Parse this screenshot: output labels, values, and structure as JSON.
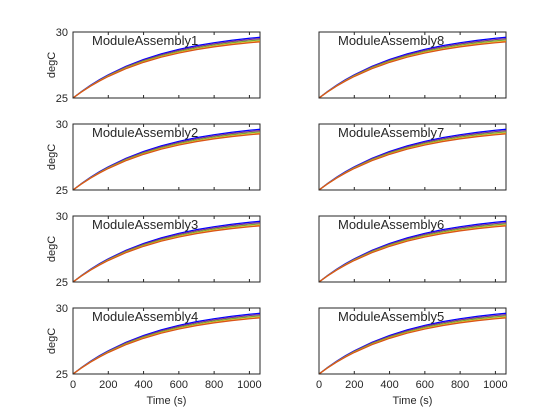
{
  "chart_data": {
    "type": "line",
    "ylabel": "degC",
    "xlabel": "Time (s)",
    "xlim": [
      0,
      1060
    ],
    "ylim": [
      25,
      30
    ],
    "xticks": [
      0,
      200,
      400,
      600,
      800,
      1000
    ],
    "yticks": [
      25,
      30
    ],
    "grid": false,
    "series_colors": [
      "#0000ff",
      "#7e2f8e",
      "#77ac30",
      "#edb120",
      "#d95319"
    ],
    "series_final_values": [
      29.6,
      29.5,
      29.4,
      29.3,
      29.25
    ],
    "series_time_constant_s": 480,
    "series_x": [
      0,
      50,
      100,
      150,
      200,
      300,
      400,
      500,
      600,
      700,
      800,
      900,
      1000,
      1060
    ],
    "panels": [
      {
        "title": "ModuleAssembly1",
        "column": "left",
        "row": 1
      },
      {
        "title": "ModuleAssembly2",
        "column": "left",
        "row": 2
      },
      {
        "title": "ModuleAssembly3",
        "column": "left",
        "row": 3
      },
      {
        "title": "ModuleAssembly4",
        "column": "left",
        "row": 4
      },
      {
        "title": "ModuleAssembly8",
        "column": "right",
        "row": 1
      },
      {
        "title": "ModuleAssembly7",
        "column": "right",
        "row": 2
      },
      {
        "title": "ModuleAssembly6",
        "column": "right",
        "row": 3
      },
      {
        "title": "ModuleAssembly5",
        "column": "right",
        "row": 4
      }
    ]
  }
}
